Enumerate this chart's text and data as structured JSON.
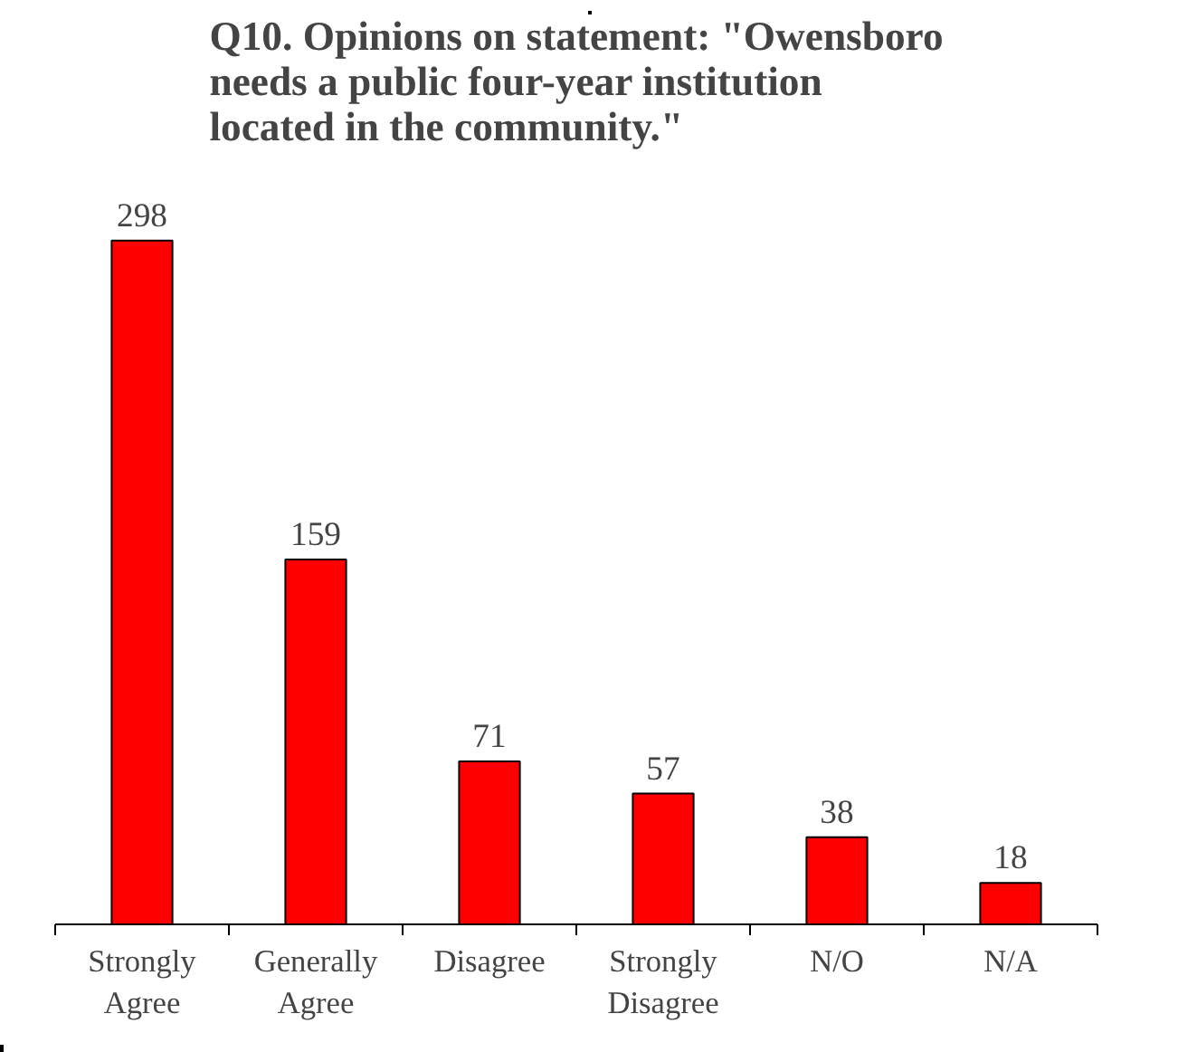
{
  "chart_data": {
    "type": "bar",
    "title": "Q10. Opinions on statement: \"Owensboro needs a public four-year institution located in the community.\"",
    "categories": [
      "Strongly Agree",
      "Generally Agree",
      "Disagree",
      "Strongly Disagree",
      "N/O",
      "N/A"
    ],
    "values": [
      298,
      159,
      71,
      57,
      38,
      18
    ],
    "color": "#ff0000",
    "data_labels": true,
    "grid": false
  }
}
